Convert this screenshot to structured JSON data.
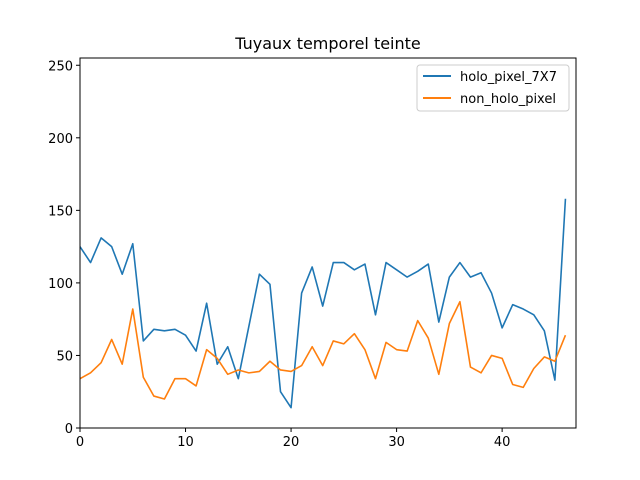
{
  "chart_data": {
    "type": "line",
    "title": "Tuyaux temporel teinte",
    "xlabel": "",
    "ylabel": "",
    "xlim": [
      0,
      47
    ],
    "ylim": [
      0,
      255
    ],
    "xticks": [
      0,
      10,
      20,
      30,
      40
    ],
    "yticks": [
      0,
      50,
      100,
      150,
      200,
      250
    ],
    "grid": false,
    "legend_position": "top-right",
    "series": [
      {
        "name": "holo_pixel_7X7",
        "color": "#1f77b4",
        "x": [
          0,
          1,
          2,
          3,
          4,
          5,
          6,
          7,
          8,
          9,
          10,
          11,
          12,
          13,
          14,
          15,
          16,
          17,
          18,
          19,
          20,
          21,
          22,
          23,
          24,
          25,
          26,
          27,
          28,
          29,
          30,
          31,
          32,
          33,
          34,
          35,
          36,
          37,
          38,
          39,
          40,
          41,
          42,
          43,
          44,
          45,
          46
        ],
        "values": [
          125,
          114,
          131,
          125,
          106,
          127,
          60,
          68,
          67,
          68,
          64,
          53,
          86,
          44,
          56,
          34,
          70,
          106,
          99,
          25,
          14,
          93,
          111,
          84,
          114,
          114,
          109,
          113,
          78,
          114,
          109,
          104,
          108,
          113,
          73,
          104,
          114,
          104,
          107,
          93,
          69,
          85,
          82,
          78,
          67,
          33,
          158
        ]
      },
      {
        "name": "non_holo_pixel",
        "color": "#ff7f0e",
        "x": [
          0,
          1,
          2,
          3,
          4,
          5,
          6,
          7,
          8,
          9,
          10,
          11,
          12,
          13,
          14,
          15,
          16,
          17,
          18,
          19,
          20,
          21,
          22,
          23,
          24,
          25,
          26,
          27,
          28,
          29,
          30,
          31,
          32,
          33,
          34,
          35,
          36,
          37,
          38,
          39,
          40,
          41,
          42,
          43,
          44,
          45,
          46
        ],
        "values": [
          34,
          38,
          45,
          61,
          44,
          82,
          35,
          22,
          20,
          34,
          34,
          29,
          54,
          48,
          37,
          40,
          38,
          39,
          46,
          40,
          39,
          43,
          56,
          43,
          60,
          58,
          65,
          54,
          34,
          59,
          54,
          53,
          74,
          62,
          37,
          72,
          87,
          42,
          38,
          50,
          48,
          30,
          28,
          41,
          49,
          46,
          64
        ]
      }
    ]
  }
}
